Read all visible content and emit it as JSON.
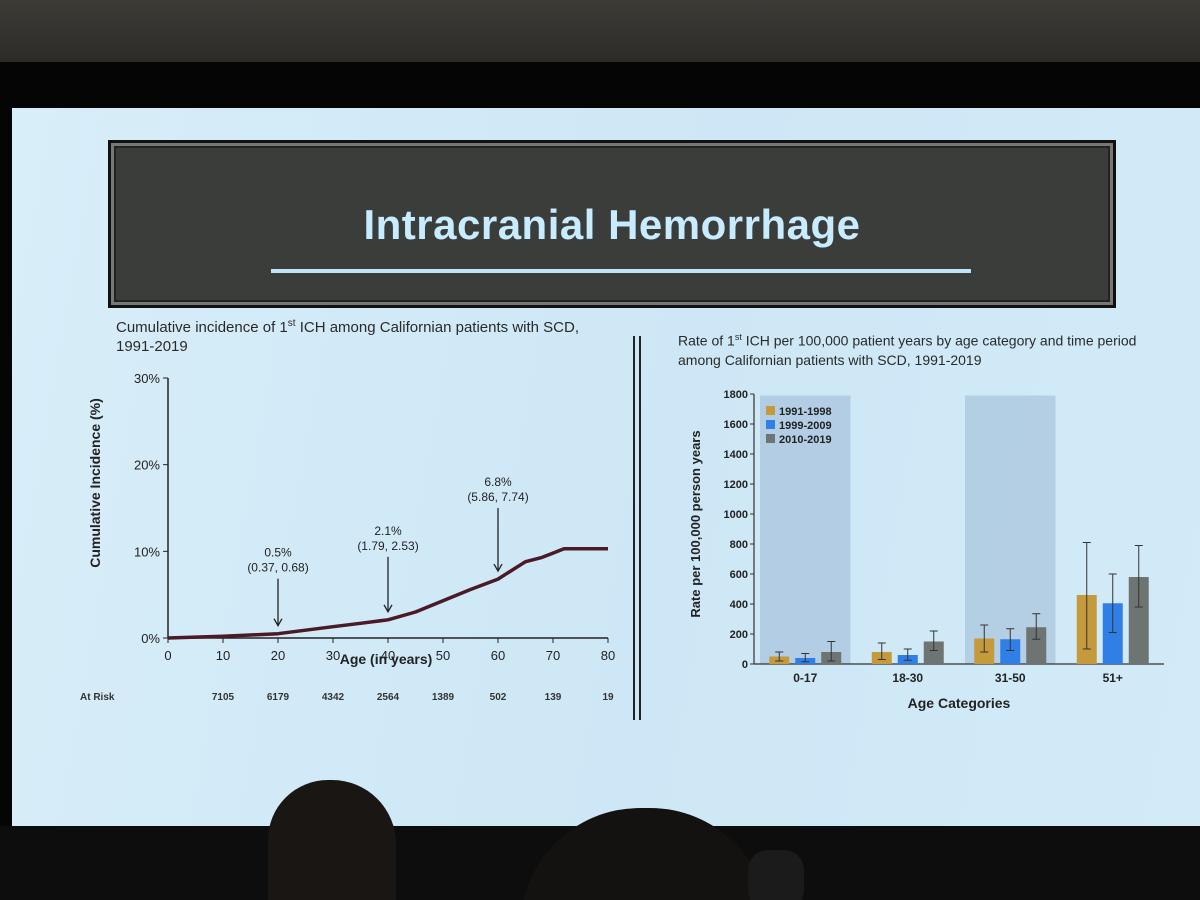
{
  "slide": {
    "title": "Intracranial Hemorrhage",
    "left_caption_a": "Cumulative incidence of 1",
    "left_caption_sup": "st",
    "left_caption_b": " ICH among Californian patients with SCD, 1991-2019",
    "right_caption_a": "Rate of 1",
    "right_caption_sup": "st",
    "right_caption_b": " ICH per 100,000 patient years by age category and time period among  Californian patients with SCD, 1991-2019"
  },
  "colors": {
    "curve": "#4a1a26",
    "bar_1991": "#c59a3c",
    "bar_1999": "#2f7fe6",
    "bar_2010": "#6d7472",
    "shade": "#a9c6de"
  },
  "chart_data": [
    {
      "type": "line",
      "title": "Cumulative incidence of 1st ICH among Californian patients with SCD, 1991-2019",
      "xlabel": "Age (in years)",
      "ylabel": "Cumulative Incidence (%)",
      "xlim": [
        0,
        80
      ],
      "ylim": [
        0,
        30
      ],
      "xticks": [
        0,
        10,
        20,
        30,
        40,
        50,
        60,
        70,
        80
      ],
      "yticks": [
        {
          "value": 0,
          "label": "0%"
        },
        {
          "value": 10,
          "label": "10%"
        },
        {
          "value": 20,
          "label": "20%"
        },
        {
          "value": 30,
          "label": "30%"
        }
      ],
      "series": [
        {
          "name": "Cumulative incidence",
          "x": [
            0,
            5,
            10,
            15,
            20,
            25,
            30,
            35,
            40,
            45,
            50,
            55,
            60,
            62,
            65,
            68,
            70,
            72,
            74,
            80
          ],
          "y": [
            0,
            0.1,
            0.2,
            0.35,
            0.5,
            0.9,
            1.3,
            1.7,
            2.1,
            3.0,
            4.3,
            5.6,
            6.8,
            7.6,
            8.8,
            9.3,
            9.8,
            10.3,
            10.3,
            10.3
          ]
        }
      ],
      "annotations": [
        {
          "x": 20,
          "y": 0.5,
          "label": "0.5%",
          "ci": "(0.37, 0.68)"
        },
        {
          "x": 40,
          "y": 2.1,
          "label": "2.1%",
          "ci": "(1.79, 2.53)"
        },
        {
          "x": 60,
          "y": 6.8,
          "label": "6.8%",
          "ci": "(5.86, 7.74)"
        }
      ],
      "at_risk_label": "At Risk",
      "at_risk": [
        {
          "x": 10,
          "n": "7105"
        },
        {
          "x": 20,
          "n": "6179"
        },
        {
          "x": 30,
          "n": "4342"
        },
        {
          "x": 40,
          "n": "2564"
        },
        {
          "x": 50,
          "n": "1389"
        },
        {
          "x": 60,
          "n": "502"
        },
        {
          "x": 70,
          "n": "139"
        },
        {
          "x": 80,
          "n": "19"
        }
      ]
    },
    {
      "type": "bar",
      "title": "Rate of 1st ICH per 100,000 patient years by age category and time period among Californian patients with SCD, 1991-2019",
      "xlabel": "Age Categories",
      "ylabel": "Rate per 100,000 person years",
      "ylim": [
        0,
        1800
      ],
      "yticks": [
        0,
        200,
        400,
        600,
        800,
        1000,
        1200,
        1400,
        1600,
        1800
      ],
      "categories": [
        "0-17",
        "18-30",
        "31-50",
        "51+"
      ],
      "shaded_categories": [
        "0-17",
        "31-50"
      ],
      "series": [
        {
          "name": "1991-1998",
          "values": [
            50,
            80,
            170,
            460
          ],
          "err_low": [
            20,
            30,
            80,
            100
          ],
          "err_high": [
            80,
            140,
            260,
            810
          ]
        },
        {
          "name": "1999-2009",
          "values": [
            40,
            60,
            165,
            405
          ],
          "err_low": [
            15,
            25,
            90,
            210
          ],
          "err_high": [
            70,
            100,
            235,
            600
          ]
        },
        {
          "name": "2010-2019",
          "values": [
            80,
            150,
            245,
            580
          ],
          "err_low": [
            20,
            90,
            165,
            380
          ],
          "err_high": [
            150,
            220,
            335,
            790
          ]
        }
      ]
    }
  ]
}
